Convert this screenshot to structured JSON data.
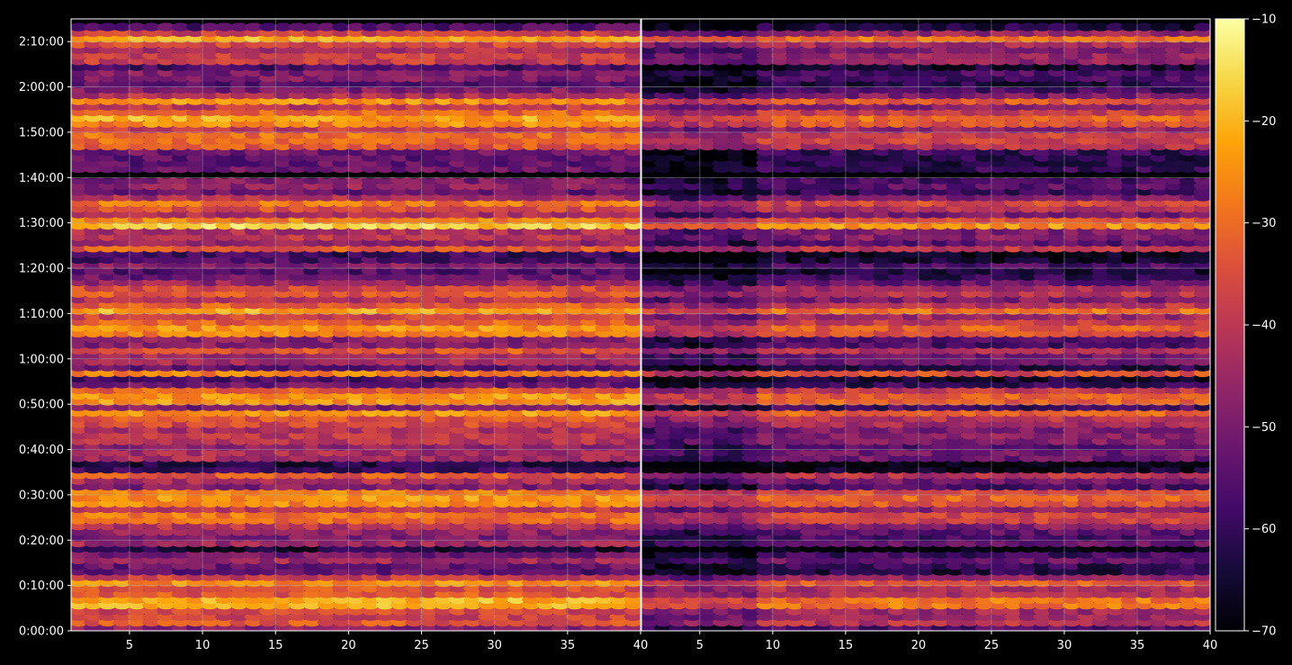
{
  "chart_data": {
    "type": "heatmap",
    "title": "",
    "xlabel": "",
    "ylabel": "",
    "grid": true,
    "colormap": "inferno",
    "panels": [
      {
        "name": "",
        "x_range": [
          1,
          40
        ],
        "y_range_seconds": [
          0,
          8100
        ]
      },
      {
        "name": "",
        "x_range": [
          1,
          40
        ],
        "y_range_seconds": [
          0,
          8100
        ]
      }
    ],
    "x_ticks": [
      {
        "value": 5,
        "label": "5"
      },
      {
        "value": 10,
        "label": "10"
      },
      {
        "value": 15,
        "label": "15"
      },
      {
        "value": 20,
        "label": "20"
      },
      {
        "value": 25,
        "label": "25"
      },
      {
        "value": 30,
        "label": "30"
      },
      {
        "value": 35,
        "label": "35"
      },
      {
        "value": 40,
        "label": "40"
      }
    ],
    "y_ticks": [
      {
        "value": 0,
        "label": "0:00:00"
      },
      {
        "value": 600,
        "label": "0:10:00"
      },
      {
        "value": 1200,
        "label": "0:20:00"
      },
      {
        "value": 1800,
        "label": "0:30:00"
      },
      {
        "value": 2400,
        "label": "0:40:00"
      },
      {
        "value": 3000,
        "label": "0:50:00"
      },
      {
        "value": 3600,
        "label": "1:00:00"
      },
      {
        "value": 4200,
        "label": "1:10:00"
      },
      {
        "value": 4800,
        "label": "1:20:00"
      },
      {
        "value": 5400,
        "label": "1:30:00"
      },
      {
        "value": 6000,
        "label": "1:40:00"
      },
      {
        "value": 6600,
        "label": "1:50:00"
      },
      {
        "value": 7200,
        "label": "2:00:00"
      },
      {
        "value": 7800,
        "label": "2:10:00"
      }
    ],
    "colorbar": {
      "range": [
        -70,
        -10
      ],
      "ticks": [
        {
          "value": -10,
          "label": "−10"
        },
        {
          "value": -20,
          "label": "−20"
        },
        {
          "value": -30,
          "label": "−30"
        },
        {
          "value": -40,
          "label": "−40"
        },
        {
          "value": -50,
          "label": "−50"
        },
        {
          "value": -60,
          "label": "−60"
        },
        {
          "value": -70,
          "label": "−70"
        }
      ]
    }
  }
}
